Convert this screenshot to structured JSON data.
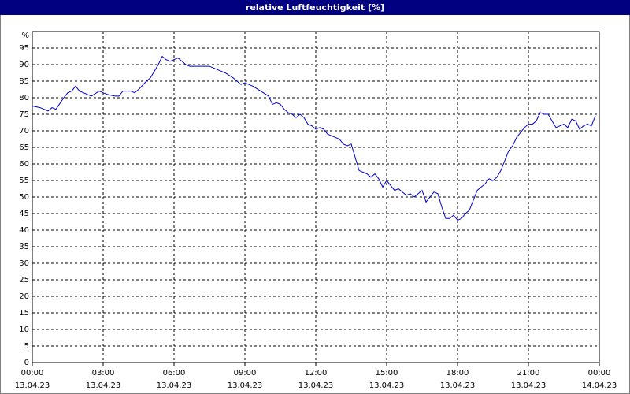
{
  "window": {
    "title": "relative Luftfeuchtigkeit [%]"
  },
  "colors": {
    "title_bar": "#000080",
    "series_line": "#0000cc",
    "grid": "#000000"
  },
  "chart_data": {
    "type": "line",
    "title": "relative Luftfeuchtigkeit [%]",
    "xlabel": "",
    "ylabel": "%",
    "ylim": [
      0,
      100
    ],
    "yticks": [
      0,
      5,
      10,
      15,
      20,
      25,
      30,
      35,
      40,
      45,
      50,
      55,
      60,
      65,
      70,
      75,
      80,
      85,
      90,
      95
    ],
    "y_unit_label": "%",
    "xlim": [
      "13.04.23 00:00",
      "14.04.23 00:00"
    ],
    "xticks": [
      {
        "time": "00:00",
        "date": "13.04.23"
      },
      {
        "time": "03:00",
        "date": "13.04.23"
      },
      {
        "time": "06:00",
        "date": "13.04.23"
      },
      {
        "time": "09:00",
        "date": "13.04.23"
      },
      {
        "time": "12:00",
        "date": "13.04.23"
      },
      {
        "time": "15:00",
        "date": "13.04.23"
      },
      {
        "time": "18:00",
        "date": "13.04.23"
      },
      {
        "time": "21:00",
        "date": "13.04.23"
      },
      {
        "time": "00:00",
        "date": "14.04.23"
      }
    ],
    "grid": true,
    "legend": "none",
    "series": [
      {
        "points": [
          [
            "13.04.23 00:00",
            77.5
          ],
          [
            "13.04.23 00:20",
            77.0
          ],
          [
            "13.04.23 00:40",
            76.0
          ],
          [
            "13.04.23 00:50",
            77.0
          ],
          [
            "13.04.23 01:00",
            76.5
          ],
          [
            "13.04.23 01:20",
            80.0
          ],
          [
            "13.04.23 01:30",
            81.5
          ],
          [
            "13.04.23 01:40",
            82.0
          ],
          [
            "13.04.23 01:50",
            83.5
          ],
          [
            "13.04.23 02:00",
            82.0
          ],
          [
            "13.04.23 02:30",
            80.5
          ],
          [
            "13.04.23 02:50",
            82.0
          ],
          [
            "13.04.23 03:10",
            81.0
          ],
          [
            "13.04.23 03:30",
            80.5
          ],
          [
            "13.04.23 03:40",
            80.5
          ],
          [
            "13.04.23 03:50",
            82.0
          ],
          [
            "13.04.23 04:10",
            82.0
          ],
          [
            "13.04.23 04:20",
            81.5
          ],
          [
            "13.04.23 04:30",
            82.5
          ],
          [
            "13.04.23 04:50",
            85.0
          ],
          [
            "13.04.23 05:00",
            86.0
          ],
          [
            "13.04.23 05:20",
            90.0
          ],
          [
            "13.04.23 05:30",
            92.5
          ],
          [
            "13.04.23 05:40",
            91.5
          ],
          [
            "13.04.23 05:50",
            91.0
          ],
          [
            "13.04.23 06:00",
            91.5
          ],
          [
            "13.04.23 06:10",
            92.0
          ],
          [
            "13.04.23 06:20",
            91.0
          ],
          [
            "13.04.23 06:30",
            90.0
          ],
          [
            "13.04.23 06:40",
            89.5
          ],
          [
            "13.04.23 07:00",
            89.5
          ],
          [
            "13.04.23 07:30",
            89.5
          ],
          [
            "13.04.23 07:50",
            88.5
          ],
          [
            "13.04.23 08:00",
            88.0
          ],
          [
            "13.04.23 08:10",
            87.5
          ],
          [
            "13.04.23 08:30",
            86.0
          ],
          [
            "13.04.23 08:40",
            85.0
          ],
          [
            "13.04.23 08:50",
            84.0
          ],
          [
            "13.04.23 09:00",
            84.5
          ],
          [
            "13.04.23 09:10",
            84.0
          ],
          [
            "13.04.23 09:20",
            83.5
          ],
          [
            "13.04.23 09:40",
            82.0
          ],
          [
            "13.04.23 10:00",
            80.5
          ],
          [
            "13.04.23 10:10",
            78.0
          ],
          [
            "13.04.23 10:20",
            78.5
          ],
          [
            "13.04.23 10:30",
            78.0
          ],
          [
            "13.04.23 10:40",
            76.5
          ],
          [
            "13.04.23 10:50",
            75.5
          ],
          [
            "13.04.23 11:00",
            75.0
          ],
          [
            "13.04.23 11:10",
            74.0
          ],
          [
            "13.04.23 11:20",
            75.0
          ],
          [
            "13.04.23 11:30",
            74.0
          ],
          [
            "13.04.23 11:40",
            72.0
          ],
          [
            "13.04.23 11:50",
            71.5
          ],
          [
            "13.04.23 12:00",
            70.5
          ],
          [
            "13.04.23 12:10",
            71.0
          ],
          [
            "13.04.23 12:20",
            70.5
          ],
          [
            "13.04.23 12:30",
            69.0
          ],
          [
            "13.04.23 12:40",
            68.5
          ],
          [
            "13.04.23 12:50",
            68.0
          ],
          [
            "13.04.23 13:00",
            67.5
          ],
          [
            "13.04.23 13:10",
            66.0
          ],
          [
            "13.04.23 13:20",
            65.5
          ],
          [
            "13.04.23 13:30",
            66.0
          ],
          [
            "13.04.23 13:40",
            62.0
          ],
          [
            "13.04.23 13:50",
            58.0
          ],
          [
            "13.04.23 14:00",
            57.5
          ],
          [
            "13.04.23 14:10",
            57.0
          ],
          [
            "13.04.23 14:20",
            56.0
          ],
          [
            "13.04.23 14:30",
            57.0
          ],
          [
            "13.04.23 14:40",
            55.5
          ],
          [
            "13.04.23 14:50",
            53.0
          ],
          [
            "13.04.23 15:00",
            55.0
          ],
          [
            "13.04.23 15:10",
            53.5
          ],
          [
            "13.04.23 15:20",
            52.0
          ],
          [
            "13.04.23 15:30",
            52.5
          ],
          [
            "13.04.23 15:40",
            51.5
          ],
          [
            "13.04.23 15:50",
            50.5
          ],
          [
            "13.04.23 16:00",
            51.0
          ],
          [
            "13.04.23 16:10",
            50.0
          ],
          [
            "13.04.23 16:20",
            51.0
          ],
          [
            "13.04.23 16:30",
            52.0
          ],
          [
            "13.04.23 16:40",
            48.5
          ],
          [
            "13.04.23 16:50",
            50.0
          ],
          [
            "13.04.23 17:00",
            51.5
          ],
          [
            "13.04.23 17:10",
            51.0
          ],
          [
            "13.04.23 17:20",
            47.0
          ],
          [
            "13.04.23 17:30",
            43.5
          ],
          [
            "13.04.23 17:40",
            43.5
          ],
          [
            "13.04.23 17:50",
            44.5
          ],
          [
            "13.04.23 18:00",
            43.0
          ],
          [
            "13.04.23 18:10",
            43.5
          ],
          [
            "13.04.23 18:20",
            45.0
          ],
          [
            "13.04.23 18:30",
            46.0
          ],
          [
            "13.04.23 18:40",
            49.0
          ],
          [
            "13.04.23 18:50",
            52.0
          ],
          [
            "13.04.23 19:00",
            53.0
          ],
          [
            "13.04.23 19:10",
            54.0
          ],
          [
            "13.04.23 19:20",
            55.5
          ],
          [
            "13.04.23 19:30",
            55.0
          ],
          [
            "13.04.23 19:40",
            56.0
          ],
          [
            "13.04.23 19:50",
            58.0
          ],
          [
            "13.04.23 20:00",
            61.0
          ],
          [
            "13.04.23 20:10",
            64.0
          ],
          [
            "13.04.23 20:20",
            65.5
          ],
          [
            "13.04.23 20:30",
            68.0
          ],
          [
            "13.04.23 20:40",
            69.5
          ],
          [
            "13.04.23 20:50",
            71.0
          ],
          [
            "13.04.23 21:00",
            72.0
          ],
          [
            "13.04.23 21:10",
            72.0
          ],
          [
            "13.04.23 21:20",
            73.0
          ],
          [
            "13.04.23 21:30",
            75.5
          ],
          [
            "13.04.23 21:40",
            75.0
          ],
          [
            "13.04.23 21:50",
            75.0
          ],
          [
            "13.04.23 22:00",
            73.0
          ],
          [
            "13.04.23 22:10",
            71.0
          ],
          [
            "13.04.23 22:20",
            71.5
          ],
          [
            "13.04.23 22:30",
            72.0
          ],
          [
            "13.04.23 22:40",
            71.0
          ],
          [
            "13.04.23 22:50",
            73.5
          ],
          [
            "13.04.23 23:00",
            73.0
          ],
          [
            "13.04.23 23:10",
            70.5
          ],
          [
            "13.04.23 23:20",
            71.5
          ],
          [
            "13.04.23 23:30",
            72.0
          ],
          [
            "13.04.23 23:40",
            71.5
          ],
          [
            "13.04.23 23:50",
            74.5
          ]
        ]
      }
    ]
  }
}
